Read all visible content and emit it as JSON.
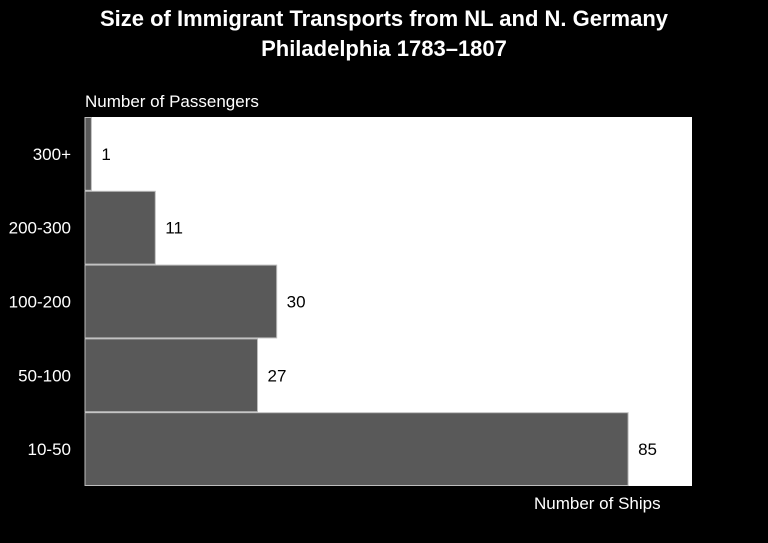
{
  "chart_data": {
    "type": "bar",
    "orientation": "horizontal",
    "title": "Size of Immigrant Transports from NL and N. Germany",
    "subtitle": "Philadelphia 1783–1807",
    "ylabel": "Number of Passengers",
    "xlabel": "Number of Ships",
    "categories": [
      "300+",
      "200-300",
      "100-200",
      "50-100",
      "10-50"
    ],
    "values": [
      1,
      11,
      30,
      27,
      85
    ],
    "xlim": [
      0,
      95
    ],
    "grid": false,
    "legend": "none",
    "colors": {
      "background": "#000000",
      "plot_background": "#ffffff",
      "bar": "#595959",
      "bar_edge": "#bdbdbd",
      "text": "#ffffff",
      "value_label": "#000000"
    }
  }
}
